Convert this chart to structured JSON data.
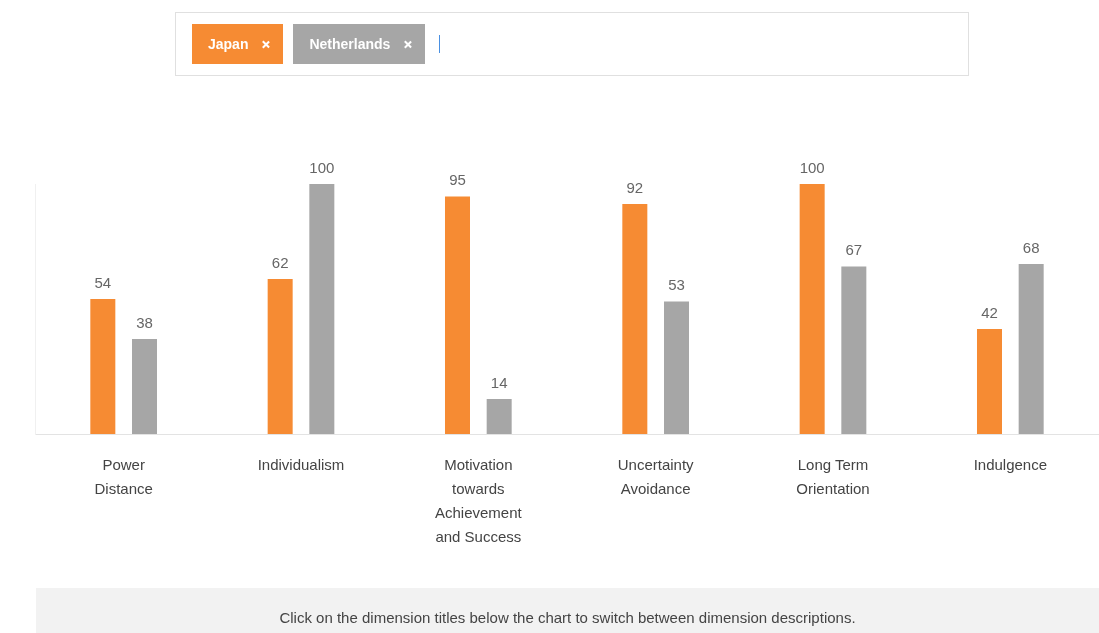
{
  "chart_data": {
    "type": "bar",
    "categories": [
      "Power Distance",
      "Individualism",
      "Motivation towards Achievement and Success",
      "Uncertainty Avoidance",
      "Long Term Orientation",
      "Indulgence"
    ],
    "series": [
      {
        "name": "Japan",
        "color": "#f68b33",
        "values": [
          54,
          62,
          95,
          92,
          100,
          42
        ]
      },
      {
        "name": "Netherlands",
        "color": "#a6a6a6",
        "values": [
          38,
          100,
          14,
          53,
          67,
          68
        ]
      }
    ],
    "data_labels": true,
    "grid": false,
    "legend": "top",
    "annotations": [
      "Click on the dimension titles below the chart to switch between dimension descriptions."
    ]
  }
}
